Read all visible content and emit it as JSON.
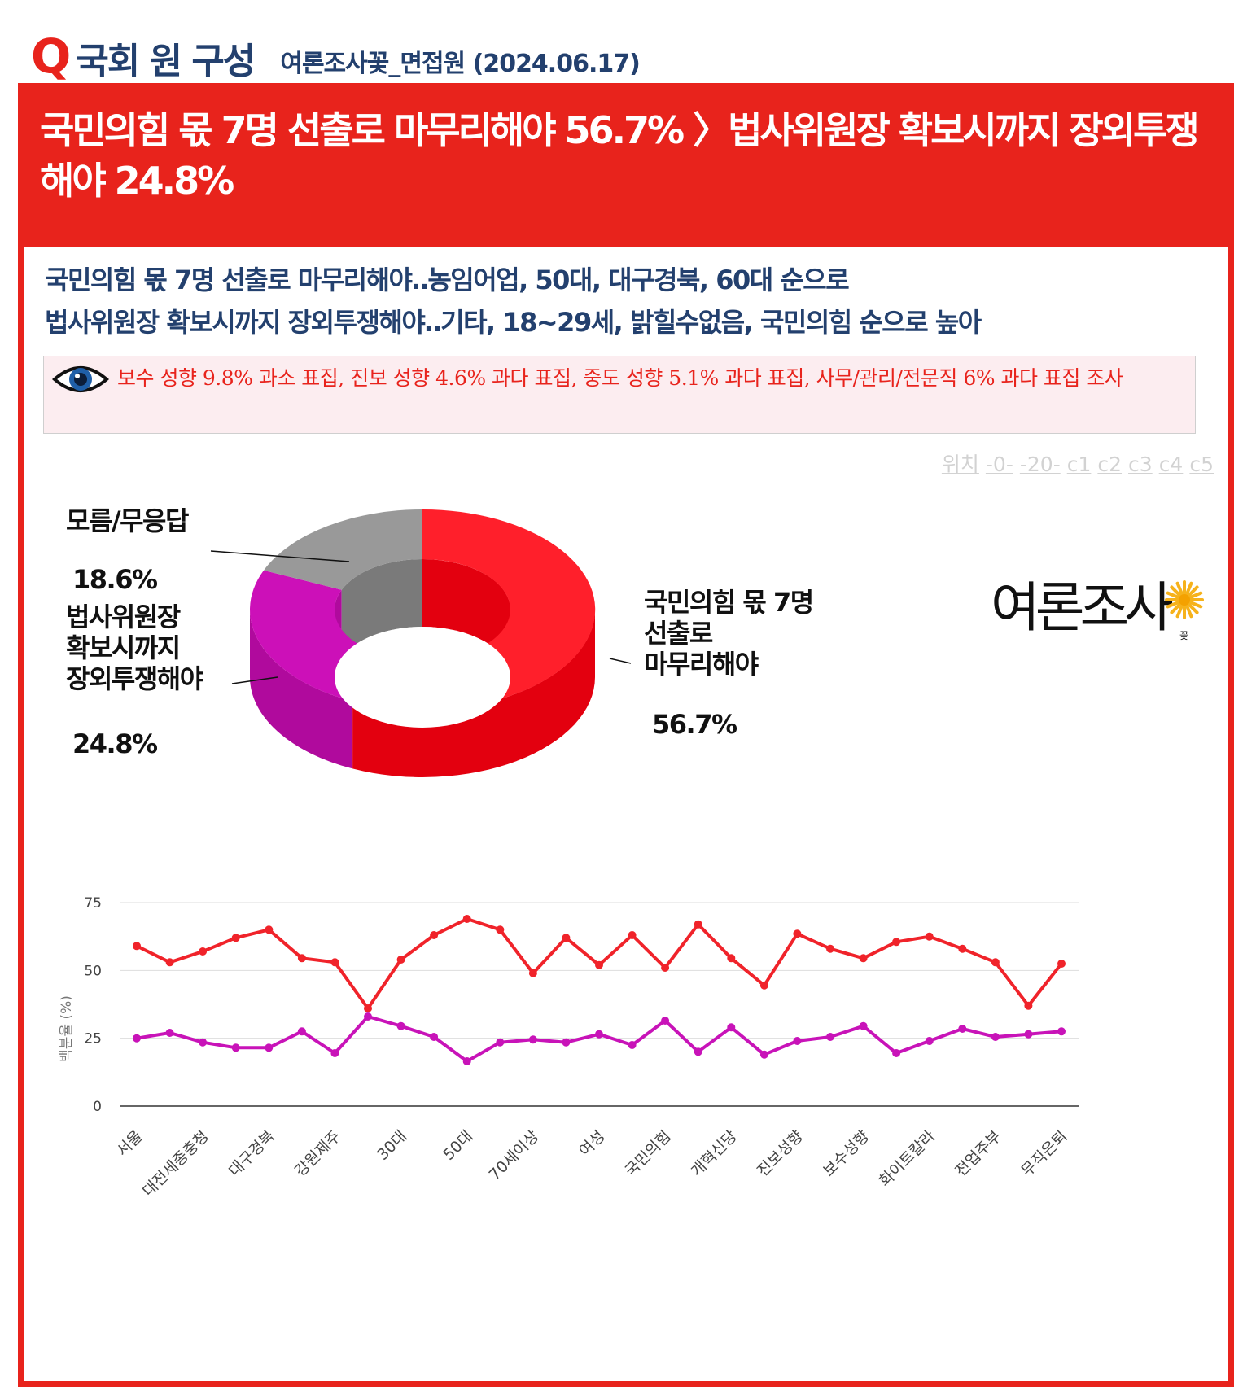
{
  "header": {
    "q_mark": "Q",
    "title": "국회 원 구성",
    "source": "여론조사꽃_면접원 (2024.06.17)"
  },
  "banner": {
    "title": "국민의힘 몫 7명 선출로 마무리해야 56.7% 〉법사위원장 확보시까지 장외투쟁해야 24.8%"
  },
  "subtitle": {
    "line1": "국민의힘 몫 7명 선출로 마무리해야‥농임어업, 50대, 대구경북, 60대 순으로",
    "line2": "법사위원장 확보시까지 장외투쟁해야‥기타, 18~29세, 밝힐수없음, 국민의힘 순으로 높아"
  },
  "note": {
    "icon": "eye-icon",
    "text": "보수 성향 9.8% 과소 표집, 진보 성향 4.6% 과다 표집, 중도 성향 5.1% 과다 표집, 사무/관리/전문직 6% 과다 표집 조사"
  },
  "position_links": {
    "label": "위치",
    "items": [
      "-0-",
      "-20-",
      "c1",
      "c2",
      "c3",
      "c4",
      "c5"
    ]
  },
  "logo": {
    "text": "여론조사",
    "small": "꽃"
  },
  "colors": {
    "accent": "#e8231c",
    "navy": "#23406e",
    "series_red": "#f0232a",
    "series_purple": "#c813b8",
    "slice_gray": "#969696"
  },
  "chart_data": [
    {
      "type": "pie",
      "variant": "donut-3d",
      "slices": [
        {
          "name": "국민의힘 몫 7명 선출로 마무리해야",
          "label_lines": [
            "국민의힘 몫 7명",
            "선출로",
            "마무리해야"
          ],
          "value": 56.7,
          "value_label": "56.7%",
          "color": "#ff1f2b",
          "side_color": "#e3000f"
        },
        {
          "name": "법사위원장 확보시까지 장외투쟁해야",
          "label_lines": [
            "법사위원장",
            "확보시까지",
            "장외투쟁해야"
          ],
          "value": 24.8,
          "value_label": "24.8%",
          "color": "#cc10b8",
          "side_color": "#b00a9d"
        },
        {
          "name": "모름/무응답",
          "label_lines": [
            "모름/무응답"
          ],
          "value": 18.6,
          "value_label": "18.6%",
          "color": "#999999",
          "side_color": "#7a7a7a"
        }
      ]
    },
    {
      "type": "line",
      "ylabel": "백분율 (%)",
      "ylim": [
        0,
        75
      ],
      "yticks": [
        0,
        25,
        50,
        75
      ],
      "grid": true,
      "x_tick_labels": [
        "서울",
        "대전세종충청",
        "대구경북",
        "강원제주",
        "30대",
        "50대",
        "70세이상",
        "여성",
        "국민의힘",
        "개혁신당",
        "진보성향",
        "보수성향",
        "화이트칼라",
        "전업주부",
        "무직은퇴"
      ],
      "x_count": 29,
      "series": [
        {
          "color": "#f0232a",
          "values": [
            59,
            53,
            57,
            62,
            65,
            54.5,
            53,
            36,
            54,
            63,
            69,
            65,
            49,
            62,
            52,
            63,
            51,
            67,
            54.5,
            44.5,
            63.5,
            58,
            54.5,
            60.5,
            62.5,
            58,
            53,
            37,
            52.5
          ]
        },
        {
          "color": "#c813b8",
          "values": [
            25,
            27,
            23.5,
            21.5,
            21.5,
            27.5,
            19.5,
            33,
            29.5,
            25.5,
            16.5,
            23.5,
            24.5,
            23.5,
            26.5,
            22.5,
            31.5,
            20,
            29,
            19,
            24,
            25.5,
            29.5,
            19.5,
            24,
            28.5,
            25.5,
            26.5,
            27.5
          ]
        }
      ]
    }
  ]
}
